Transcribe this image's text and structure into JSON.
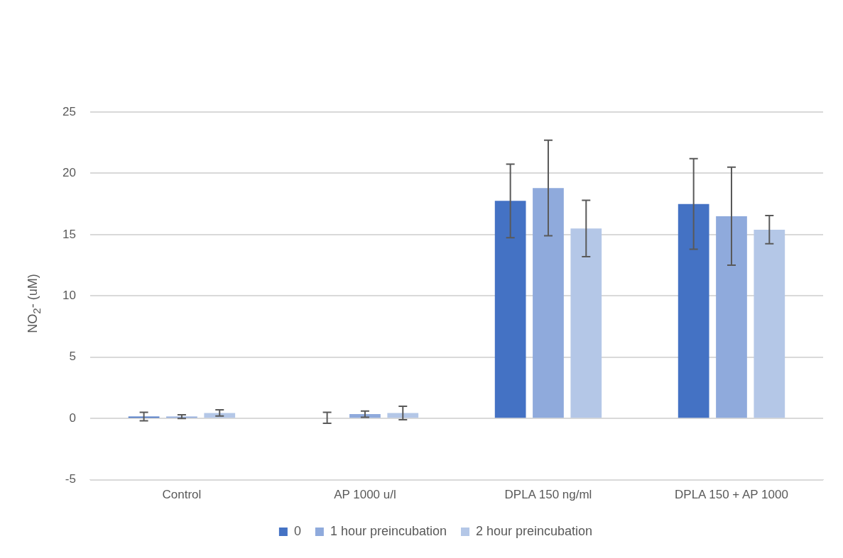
{
  "chart_data": {
    "type": "bar",
    "ylabel": "NO$_{2}$- (uM)",
    "categories": [
      "Control",
      "AP 1000 u/l",
      "DPLA 150 ng/ml",
      "DPLA 150 + AP 1000"
    ],
    "series": [
      {
        "name": "0",
        "color": "#4472c4",
        "values": [
          0.15,
          0.05,
          17.75,
          17.5
        ],
        "errors": [
          0.35,
          0.45,
          3.0,
          3.7
        ]
      },
      {
        "name": "1 hour preincubation",
        "color": "#8faadc",
        "values": [
          0.15,
          0.35,
          18.8,
          16.5
        ],
        "errors": [
          0.15,
          0.25,
          3.9,
          4.0
        ]
      },
      {
        "name": "2 hour preincubation",
        "color": "#b4c7e7",
        "values": [
          0.45,
          0.45,
          15.5,
          15.4
        ],
        "errors": [
          0.25,
          0.55,
          2.3,
          1.15
        ]
      }
    ],
    "ylim": [
      -5,
      25
    ],
    "yticks": [
      -5,
      0,
      5,
      10,
      15,
      20,
      25
    ],
    "grid": "y",
    "legend": "bottom"
  }
}
